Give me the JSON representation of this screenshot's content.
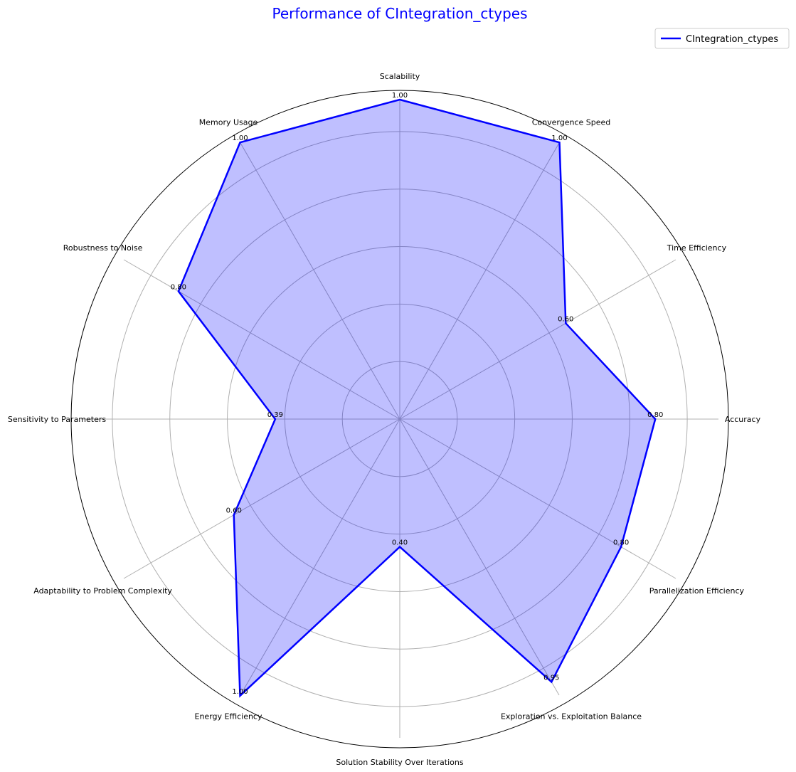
{
  "chart_data": {
    "type": "radar",
    "title": "Performance of CIntegration_ctypes",
    "categories": [
      "Scalability",
      "Convergence Speed",
      "Time Efficiency",
      "Accuracy",
      "Parallelization Efficiency",
      "Exploration vs. Exploitation Balance",
      "Solution Stability Over Iterations",
      "Energy Efficiency",
      "Adaptability to Problem Complexity",
      "Sensitivity to Parameters",
      "Robustness to Noise",
      "Memory Usage"
    ],
    "series": [
      {
        "name": "CIntegration_ctypes",
        "values": [
          1.0,
          1.0,
          0.6,
          0.8,
          0.8,
          0.95,
          0.4,
          1.0,
          0.6,
          0.39,
          0.8,
          1.0
        ],
        "value_labels": [
          "1.00",
          "1.00",
          "0.60",
          "0.80",
          "0.80",
          "0.95",
          "0.40",
          "1.00",
          "0.60",
          "0.39",
          "0.80",
          "1.00"
        ]
      }
    ],
    "rlim": [
      0,
      1.0
    ],
    "grid": true,
    "legend": "top-right"
  },
  "colors": {
    "title": "#0000ff",
    "line": "#0000ff",
    "fill": "#0000ff",
    "grid": "#b0b0b0",
    "frame": "#000000"
  }
}
